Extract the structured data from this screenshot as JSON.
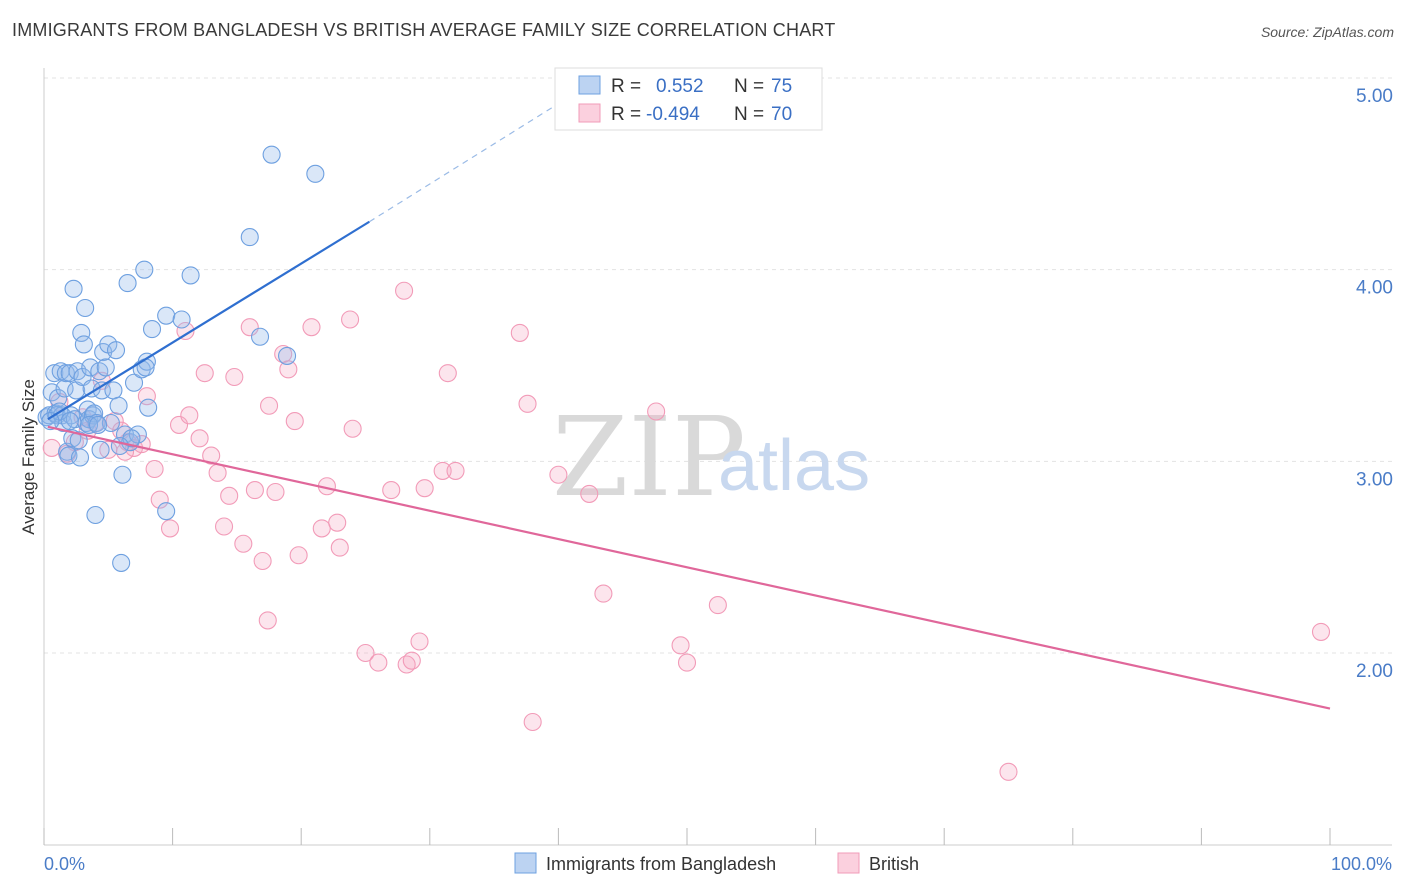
{
  "title": "IMMIGRANTS FROM BANGLADESH VS BRITISH AVERAGE FAMILY SIZE CORRELATION CHART",
  "source": "Source: ZipAtlas.com",
  "watermark": {
    "zip": "ZIP",
    "atlas": "atlas"
  },
  "legend_stats": [
    {
      "r_label": "R =",
      "r_value": "0.552",
      "n_label": "N =",
      "n_value": "75",
      "color": "#6ea0e0"
    },
    {
      "r_label": "R =",
      "r_value": "-0.494",
      "n_label": "N =",
      "n_value": "70",
      "color": "#f29bb8"
    }
  ],
  "chart_data": {
    "type": "scatter",
    "ylabel": "Average Family Size",
    "xlabel": "",
    "x_tick_labels": [
      "0.0%",
      "100.0%"
    ],
    "y_ticks": [
      2.0,
      3.0,
      4.0,
      5.0
    ],
    "y_tick_labels": [
      "2.00",
      "3.00",
      "4.00",
      "5.00"
    ],
    "xlim": [
      0,
      100
    ],
    "ylim": [
      1.0,
      5.1
    ],
    "grid": true,
    "legend_position": "top-center",
    "series": [
      {
        "name": "Immigrants from Bangladesh",
        "color": "#6ea0e0",
        "line_color": "#2f6fd0",
        "trend": {
          "x0": 0.3,
          "y0": 3.22,
          "x1": 25.3,
          "y1": 4.25,
          "dashed_to_x": 42,
          "dashed_to_y": 4.95
        },
        "points": [
          [
            0.2,
            3.23
          ],
          [
            0.4,
            3.24
          ],
          [
            0.6,
            3.36
          ],
          [
            0.8,
            3.46
          ],
          [
            0.9,
            3.25
          ],
          [
            1.0,
            3.24
          ],
          [
            1.1,
            3.33
          ],
          [
            1.3,
            3.47
          ],
          [
            1.4,
            3.24
          ],
          [
            1.5,
            3.2
          ],
          [
            1.6,
            3.38
          ],
          [
            1.7,
            3.46
          ],
          [
            1.8,
            3.05
          ],
          [
            1.9,
            3.03
          ],
          [
            2.0,
            3.46
          ],
          [
            2.1,
            3.24
          ],
          [
            2.2,
            3.12
          ],
          [
            2.3,
            3.9
          ],
          [
            2.4,
            3.22
          ],
          [
            2.5,
            3.37
          ],
          [
            2.6,
            3.47
          ],
          [
            2.7,
            3.11
          ],
          [
            2.8,
            3.02
          ],
          [
            2.9,
            3.67
          ],
          [
            3.0,
            3.44
          ],
          [
            3.1,
            3.61
          ],
          [
            3.2,
            3.8
          ],
          [
            3.3,
            3.2
          ],
          [
            3.4,
            3.27
          ],
          [
            3.5,
            3.22
          ],
          [
            3.6,
            3.49
          ],
          [
            3.7,
            3.38
          ],
          [
            3.8,
            3.24
          ],
          [
            3.9,
            3.25
          ],
          [
            4.0,
            2.72
          ],
          [
            4.1,
            3.2
          ],
          [
            4.3,
            3.47
          ],
          [
            4.4,
            3.06
          ],
          [
            4.5,
            3.37
          ],
          [
            4.6,
            3.57
          ],
          [
            4.8,
            3.49
          ],
          [
            5.0,
            3.61
          ],
          [
            5.2,
            3.2
          ],
          [
            5.4,
            3.37
          ],
          [
            5.6,
            3.58
          ],
          [
            5.8,
            3.29
          ],
          [
            6.0,
            2.47
          ],
          [
            6.1,
            2.93
          ],
          [
            6.3,
            3.14
          ],
          [
            6.5,
            3.93
          ],
          [
            6.7,
            3.1
          ],
          [
            7.0,
            3.41
          ],
          [
            7.3,
            3.14
          ],
          [
            7.6,
            3.48
          ],
          [
            7.8,
            4.0
          ],
          [
            8.0,
            3.52
          ],
          [
            8.1,
            3.28
          ],
          [
            8.4,
            3.69
          ],
          [
            9.5,
            2.74
          ],
          [
            9.5,
            3.76
          ],
          [
            10.7,
            3.74
          ],
          [
            11.4,
            3.97
          ],
          [
            16.0,
            4.17
          ],
          [
            16.8,
            3.65
          ],
          [
            17.7,
            4.6
          ],
          [
            18.9,
            3.55
          ],
          [
            21.1,
            4.5
          ],
          [
            3.5,
            3.19
          ],
          [
            1.2,
            3.26
          ],
          [
            6.8,
            3.12
          ],
          [
            2.0,
            3.21
          ],
          [
            4.2,
            3.19
          ],
          [
            0.5,
            3.21
          ],
          [
            7.9,
            3.49
          ],
          [
            5.9,
            3.08
          ]
        ]
      },
      {
        "name": "British",
        "color": "#f29bb8",
        "line_color": "#e0679a",
        "trend": {
          "x0": 0.3,
          "y0": 3.18,
          "x1": 100.0,
          "y1": 1.71
        },
        "points": [
          [
            0.6,
            3.07
          ],
          [
            1.2,
            3.31
          ],
          [
            1.8,
            3.04
          ],
          [
            2.4,
            3.1
          ],
          [
            3.0,
            3.23
          ],
          [
            3.4,
            3.16
          ],
          [
            4.0,
            3.2
          ],
          [
            4.5,
            3.42
          ],
          [
            5.0,
            3.06
          ],
          [
            5.5,
            3.21
          ],
          [
            6.0,
            3.16
          ],
          [
            6.5,
            3.1
          ],
          [
            7.0,
            3.07
          ],
          [
            7.6,
            3.09
          ],
          [
            8.0,
            3.34
          ],
          [
            8.6,
            2.96
          ],
          [
            9.0,
            2.8
          ],
          [
            9.8,
            2.65
          ],
          [
            10.5,
            3.19
          ],
          [
            11.0,
            3.68
          ],
          [
            11.3,
            3.24
          ],
          [
            12.1,
            3.12
          ],
          [
            12.5,
            3.46
          ],
          [
            13.0,
            3.03
          ],
          [
            13.5,
            2.94
          ],
          [
            14.0,
            2.66
          ],
          [
            14.4,
            2.82
          ],
          [
            14.8,
            3.44
          ],
          [
            15.5,
            2.57
          ],
          [
            16.0,
            3.7
          ],
          [
            16.4,
            2.85
          ],
          [
            17.0,
            2.48
          ],
          [
            17.4,
            2.17
          ],
          [
            18.0,
            2.84
          ],
          [
            18.6,
            3.56
          ],
          [
            19.0,
            3.48
          ],
          [
            19.5,
            3.21
          ],
          [
            19.8,
            2.51
          ],
          [
            20.8,
            3.7
          ],
          [
            21.6,
            2.65
          ],
          [
            22.0,
            2.87
          ],
          [
            22.8,
            2.68
          ],
          [
            23.0,
            2.55
          ],
          [
            23.8,
            3.74
          ],
          [
            24.0,
            3.17
          ],
          [
            25.0,
            2.0
          ],
          [
            26.0,
            1.95
          ],
          [
            27.0,
            2.85
          ],
          [
            28.0,
            3.89
          ],
          [
            28.2,
            1.94
          ],
          [
            28.6,
            1.96
          ],
          [
            29.2,
            2.06
          ],
          [
            29.6,
            2.86
          ],
          [
            31.0,
            2.95
          ],
          [
            31.4,
            3.46
          ],
          [
            32.0,
            2.95
          ],
          [
            37.0,
            3.67
          ],
          [
            37.6,
            3.3
          ],
          [
            38.0,
            1.64
          ],
          [
            40.0,
            2.93
          ],
          [
            42.4,
            2.83
          ],
          [
            43.5,
            2.31
          ],
          [
            47.6,
            3.26
          ],
          [
            49.5,
            2.04
          ],
          [
            50.0,
            1.95
          ],
          [
            52.4,
            2.25
          ],
          [
            75.0,
            1.38
          ],
          [
            99.3,
            2.11
          ],
          [
            6.3,
            3.05
          ],
          [
            17.5,
            3.29
          ]
        ]
      }
    ]
  },
  "bottom_legend": [
    {
      "label": "Immigrants from Bangladesh",
      "color": "#6ea0e0"
    },
    {
      "label": "British",
      "color": "#f29bb8"
    }
  ]
}
